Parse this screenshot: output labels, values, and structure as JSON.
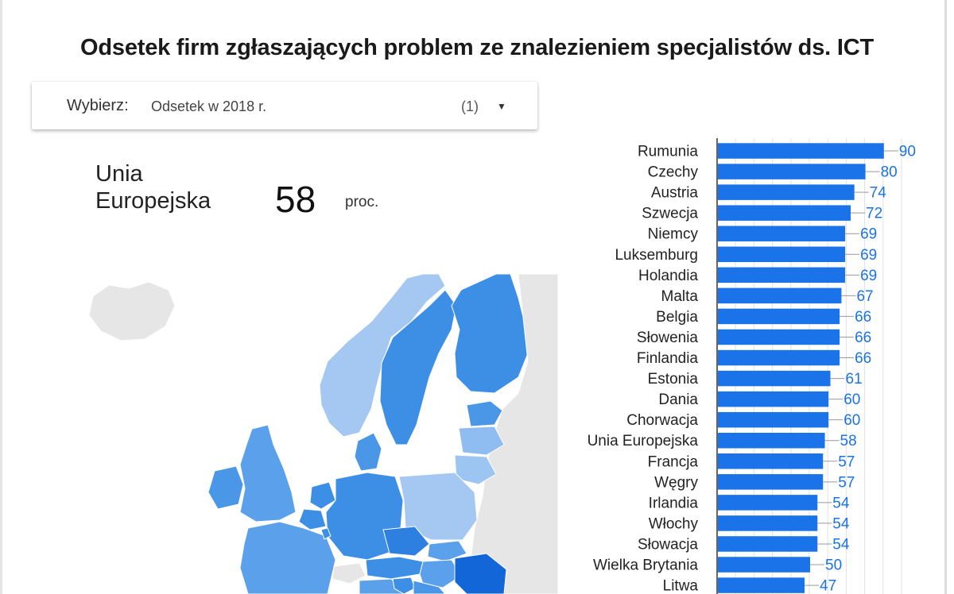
{
  "title": "Odsetek firm zgłaszających problem ze znalezieniem specjalistów ds. ICT",
  "selector": {
    "label": "Wybierz",
    "value": "Odsetek w 2018 r.",
    "count": "(1)",
    "arrow_icon": "dropdown-arrow-icon"
  },
  "summary": {
    "region": "Unia Europejska",
    "value": "58",
    "unit": "proc."
  },
  "colors": {
    "bar": "#1a73e8",
    "label": "#1a73e8",
    "map_land": "#e8e8e8"
  },
  "chart_data": {
    "type": "bar",
    "orientation": "horizontal",
    "categories": [
      "Rumunia",
      "Czechy",
      "Austria",
      "Szwecja",
      "Niemcy",
      "Luksemburg",
      "Holandia",
      "Malta",
      "Belgia",
      "Słowenia",
      "Finlandia",
      "Estonia",
      "Dania",
      "Chorwacja",
      "Unia Europejska",
      "Francja",
      "Węgry",
      "Irlandia",
      "Włochy",
      "Słowacja",
      "Wielka Brytania",
      "Litwa"
    ],
    "values": [
      90,
      80,
      74,
      72,
      69,
      69,
      69,
      67,
      66,
      66,
      66,
      61,
      60,
      60,
      58,
      57,
      57,
      54,
      54,
      54,
      50,
      47
    ],
    "xlim": [
      0,
      100
    ],
    "grid": true
  }
}
